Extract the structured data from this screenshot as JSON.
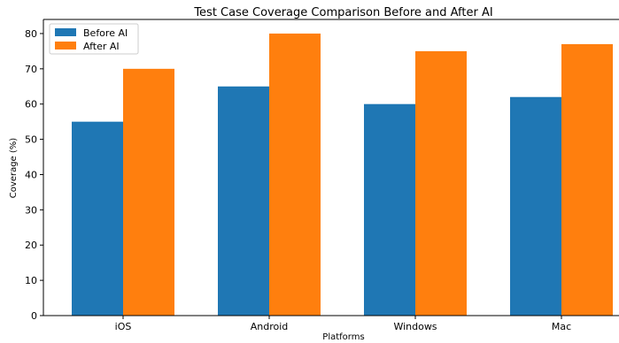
{
  "chart_data": {
    "type": "bar",
    "title": "Test Case Coverage Comparison Before and After AI",
    "xlabel": "Platforms",
    "ylabel": "Coverage (%)",
    "categories": [
      "iOS",
      "Android",
      "Windows",
      "Mac"
    ],
    "series": [
      {
        "name": "Before AI",
        "values": [
          55,
          65,
          60,
          62
        ],
        "color": "#1f77b4"
      },
      {
        "name": "After AI",
        "values": [
          70,
          80,
          75,
          77
        ],
        "color": "#ff7f0e"
      }
    ],
    "ylim": [
      0,
      84
    ],
    "yticks": [
      0,
      10,
      20,
      30,
      40,
      50,
      60,
      70,
      80
    ],
    "grid": false,
    "legend": "top-left"
  }
}
